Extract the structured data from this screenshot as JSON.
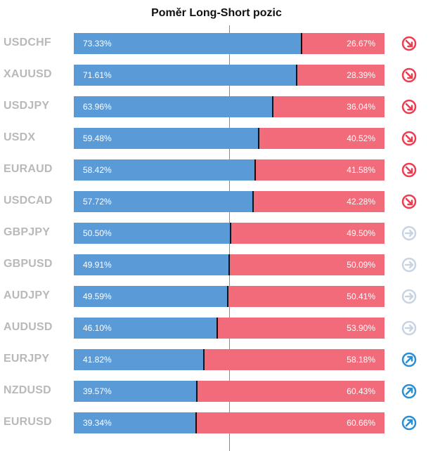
{
  "title": "Poměr Long-Short pozic",
  "colors": {
    "long": "#5a9ad7",
    "short": "#f16b7a",
    "label": "#b9b9b9",
    "down": "#ef3b4f",
    "neutral": "#c9d4e3",
    "up": "#2a8ed6"
  },
  "chart_data": {
    "type": "bar",
    "title": "Poměr Long-Short pozic",
    "stacked": true,
    "orientation": "horizontal",
    "categories": [
      "USDCHF",
      "XAUUSD",
      "USDJPY",
      "USDX",
      "EURAUD",
      "USDCAD",
      "GBPJPY",
      "GBPUSD",
      "AUDJPY",
      "AUDUSD",
      "EURJPY",
      "NZDUSD",
      "EURUSD"
    ],
    "series": [
      {
        "values": [
          73.33,
          71.61,
          63.96,
          59.48,
          58.42,
          57.72,
          50.5,
          49.91,
          49.59,
          46.1,
          41.82,
          39.57,
          39.34
        ]
      },
      {
        "values": [
          26.67,
          28.39,
          36.04,
          40.52,
          41.58,
          42.28,
          49.5,
          50.09,
          50.41,
          53.9,
          58.18,
          60.43,
          60.66
        ]
      }
    ],
    "long_labels": [
      "73.33%",
      "71.61%",
      "63.96%",
      "59.48%",
      "58.42%",
      "57.72%",
      "50.50%",
      "49.91%",
      "49.59%",
      "46.10%",
      "41.82%",
      "39.57%",
      "39.34%"
    ],
    "short_labels": [
      "26.67%",
      "28.39%",
      "36.04%",
      "40.52%",
      "41.58%",
      "42.28%",
      "49.50%",
      "50.09%",
      "50.41%",
      "53.90%",
      "58.18%",
      "60.43%",
      "60.66%"
    ],
    "signals": [
      "down",
      "down",
      "down",
      "down",
      "down",
      "down",
      "neutral",
      "neutral",
      "neutral",
      "neutral",
      "up",
      "up",
      "up"
    ],
    "xlim": [
      0,
      100
    ]
  }
}
